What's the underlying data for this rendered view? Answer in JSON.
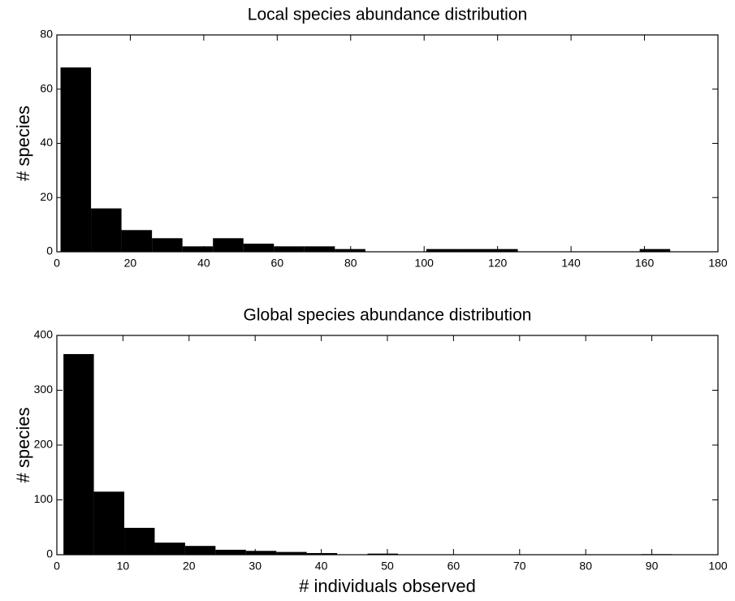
{
  "chart_data": [
    {
      "type": "histogram",
      "title": "Local species abundance distribution",
      "y_label": "# species",
      "color": "#000000",
      "bins": [
        1,
        9.3,
        17.6,
        25.9,
        34.2,
        42.5,
        50.8,
        59.1,
        67.4,
        75.7,
        84,
        92.3,
        100.6,
        108.9,
        117.2,
        125.5,
        133.8,
        142.1,
        150.4,
        158.7,
        167
      ],
      "values": [
        68,
        16,
        8,
        5,
        2,
        5,
        3,
        2,
        2,
        1,
        0,
        0,
        1,
        1,
        1,
        0,
        0,
        0,
        0,
        1
      ],
      "xlim": [
        0,
        180
      ],
      "xticks": [
        0,
        20,
        40,
        60,
        80,
        100,
        120,
        140,
        160,
        180
      ],
      "ylim": [
        0,
        80
      ],
      "yticks": [
        0,
        20,
        40,
        60,
        80
      ]
    },
    {
      "type": "histogram",
      "title": "Global species abundance distribution",
      "y_label": "# species",
      "x_label": "# individuals observed",
      "color": "#000000",
      "bins": [
        1,
        5.6,
        10.2,
        14.8,
        19.4,
        24,
        28.6,
        33.2,
        37.8,
        42.4,
        47,
        51.6,
        56.2,
        60.8,
        65.4,
        70,
        74.6,
        79.2,
        83.8,
        88.4,
        93
      ],
      "values": [
        366,
        115,
        49,
        22,
        16,
        9,
        7,
        5,
        3,
        0,
        2,
        0,
        0,
        0,
        0,
        0,
        0,
        0,
        0,
        1
      ],
      "xlim": [
        0,
        100
      ],
      "xticks": [
        0,
        10,
        20,
        30,
        40,
        50,
        60,
        70,
        80,
        90,
        100
      ],
      "ylim": [
        0,
        400
      ],
      "yticks": [
        0,
        100,
        200,
        300,
        400
      ]
    }
  ]
}
